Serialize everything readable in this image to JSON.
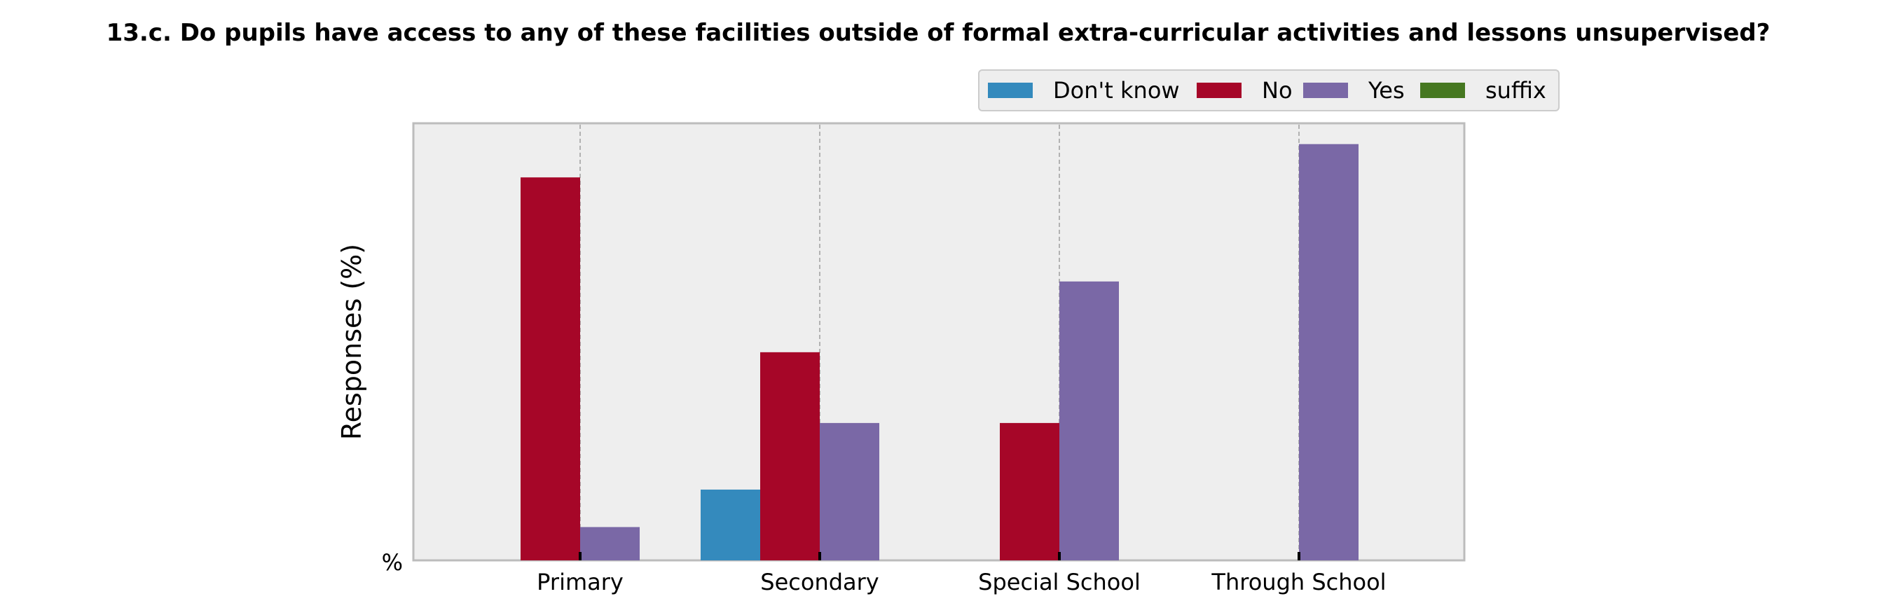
{
  "chart_data": {
    "type": "bar",
    "title": "13.c. Do pupils have access to any of these facilities outside of formal extra-curricular activities and lessons unsupervised?",
    "xlabel": "",
    "ylabel": "Responses (%)",
    "y_tick_label": "%",
    "categories": [
      "Primary",
      "Secondary",
      "Special School",
      "Through School"
    ],
    "series": [
      {
        "name": "Don't know",
        "color": "#348ABD",
        "values": [
          0,
          17,
          0,
          0
        ]
      },
      {
        "name": "No",
        "color": "#A60628",
        "values": [
          92,
          50,
          33,
          0
        ]
      },
      {
        "name": "Yes",
        "color": "#7A68A6",
        "values": [
          8,
          33,
          67,
          100
        ]
      },
      {
        "name": "suffix",
        "color": "#467821",
        "values": [
          0,
          0,
          0,
          0
        ]
      }
    ],
    "ylim": [
      0,
      105
    ],
    "grid": "vertical dashed",
    "legend_position": "top-right"
  }
}
